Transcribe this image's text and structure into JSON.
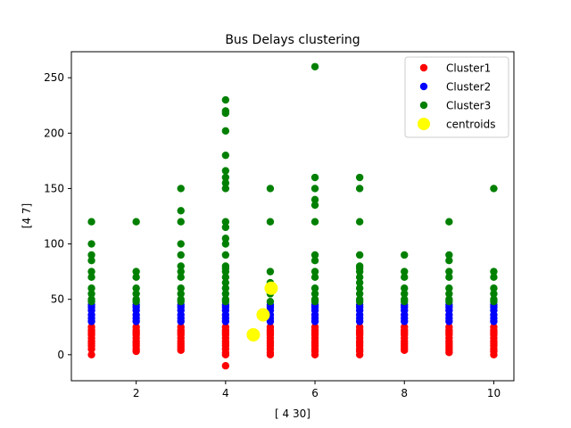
{
  "chart_data": {
    "type": "scatter",
    "title": "Bus Delays clustering",
    "xlabel": "[ 4 30]",
    "ylabel": "[4 7]",
    "xlim": [
      0.55,
      10.45
    ],
    "ylim": [
      -23.5,
      273.5
    ],
    "xticks": [
      2,
      4,
      6,
      8,
      10
    ],
    "yticks": [
      0,
      50,
      100,
      150,
      200,
      250
    ],
    "legend_position": "top-right",
    "grid": false,
    "series": [
      {
        "name": "Cluster1",
        "color": "#ff0000",
        "points": [
          [
            1,
            0
          ],
          [
            1,
            5
          ],
          [
            1,
            8
          ],
          [
            1,
            10
          ],
          [
            1,
            12
          ],
          [
            1,
            15
          ],
          [
            1,
            18
          ],
          [
            1,
            20
          ],
          [
            1,
            22
          ],
          [
            1,
            25
          ],
          [
            2,
            3
          ],
          [
            2,
            5
          ],
          [
            2,
            8
          ],
          [
            2,
            10
          ],
          [
            2,
            12
          ],
          [
            2,
            15
          ],
          [
            2,
            18
          ],
          [
            2,
            20
          ],
          [
            2,
            22
          ],
          [
            2,
            25
          ],
          [
            3,
            4
          ],
          [
            3,
            6
          ],
          [
            3,
            8
          ],
          [
            3,
            10
          ],
          [
            3,
            12
          ],
          [
            3,
            15
          ],
          [
            3,
            18
          ],
          [
            3,
            20
          ],
          [
            3,
            22
          ],
          [
            3,
            25
          ],
          [
            4,
            -10
          ],
          [
            4,
            0
          ],
          [
            4,
            2
          ],
          [
            4,
            5
          ],
          [
            4,
            8
          ],
          [
            4,
            10
          ],
          [
            4,
            12
          ],
          [
            4,
            15
          ],
          [
            4,
            18
          ],
          [
            4,
            20
          ],
          [
            4,
            22
          ],
          [
            4,
            25
          ],
          [
            5,
            0
          ],
          [
            5,
            2
          ],
          [
            5,
            5
          ],
          [
            5,
            8
          ],
          [
            5,
            10
          ],
          [
            5,
            12
          ],
          [
            5,
            15
          ],
          [
            5,
            18
          ],
          [
            5,
            20
          ],
          [
            5,
            22
          ],
          [
            5,
            25
          ],
          [
            6,
            0
          ],
          [
            6,
            3
          ],
          [
            6,
            5
          ],
          [
            6,
            8
          ],
          [
            6,
            10
          ],
          [
            6,
            12
          ],
          [
            6,
            15
          ],
          [
            6,
            18
          ],
          [
            6,
            20
          ],
          [
            6,
            22
          ],
          [
            6,
            25
          ],
          [
            7,
            0
          ],
          [
            7,
            3
          ],
          [
            7,
            5
          ],
          [
            7,
            8
          ],
          [
            7,
            10
          ],
          [
            7,
            12
          ],
          [
            7,
            15
          ],
          [
            7,
            18
          ],
          [
            7,
            20
          ],
          [
            7,
            22
          ],
          [
            7,
            25
          ],
          [
            8,
            4
          ],
          [
            8,
            6
          ],
          [
            8,
            8
          ],
          [
            8,
            10
          ],
          [
            8,
            12
          ],
          [
            8,
            15
          ],
          [
            8,
            18
          ],
          [
            8,
            20
          ],
          [
            8,
            22
          ],
          [
            8,
            25
          ],
          [
            9,
            2
          ],
          [
            9,
            4
          ],
          [
            9,
            6
          ],
          [
            9,
            8
          ],
          [
            9,
            10
          ],
          [
            9,
            12
          ],
          [
            9,
            15
          ],
          [
            9,
            18
          ],
          [
            9,
            20
          ],
          [
            9,
            22
          ],
          [
            9,
            25
          ],
          [
            10,
            0
          ],
          [
            10,
            3
          ],
          [
            10,
            5
          ],
          [
            10,
            8
          ],
          [
            10,
            10
          ],
          [
            10,
            12
          ],
          [
            10,
            15
          ],
          [
            10,
            18
          ],
          [
            10,
            20
          ],
          [
            10,
            22
          ],
          [
            10,
            25
          ]
        ]
      },
      {
        "name": "Cluster2",
        "color": "#0000ff",
        "points": [
          [
            1,
            30
          ],
          [
            1,
            33
          ],
          [
            1,
            36
          ],
          [
            1,
            40
          ],
          [
            1,
            43
          ],
          [
            1,
            45
          ],
          [
            2,
            30
          ],
          [
            2,
            33
          ],
          [
            2,
            36
          ],
          [
            2,
            40
          ],
          [
            2,
            43
          ],
          [
            2,
            45
          ],
          [
            3,
            30
          ],
          [
            3,
            33
          ],
          [
            3,
            36
          ],
          [
            3,
            40
          ],
          [
            3,
            43
          ],
          [
            3,
            45
          ],
          [
            4,
            30
          ],
          [
            4,
            33
          ],
          [
            4,
            36
          ],
          [
            4,
            40
          ],
          [
            4,
            43
          ],
          [
            4,
            45
          ],
          [
            5,
            30
          ],
          [
            5,
            33
          ],
          [
            5,
            36
          ],
          [
            5,
            40
          ],
          [
            5,
            43
          ],
          [
            5,
            45
          ],
          [
            6,
            30
          ],
          [
            6,
            33
          ],
          [
            6,
            36
          ],
          [
            6,
            40
          ],
          [
            6,
            43
          ],
          [
            6,
            45
          ],
          [
            7,
            30
          ],
          [
            7,
            33
          ],
          [
            7,
            36
          ],
          [
            7,
            40
          ],
          [
            7,
            43
          ],
          [
            7,
            45
          ],
          [
            8,
            30
          ],
          [
            8,
            33
          ],
          [
            8,
            36
          ],
          [
            8,
            40
          ],
          [
            8,
            43
          ],
          [
            8,
            45
          ],
          [
            9,
            30
          ],
          [
            9,
            33
          ],
          [
            9,
            36
          ],
          [
            9,
            40
          ],
          [
            9,
            43
          ],
          [
            9,
            45
          ],
          [
            10,
            30
          ],
          [
            10,
            33
          ],
          [
            10,
            36
          ],
          [
            10,
            40
          ],
          [
            10,
            43
          ],
          [
            10,
            45
          ]
        ]
      },
      {
        "name": "Cluster3",
        "color": "#008000",
        "points": [
          [
            1,
            48
          ],
          [
            1,
            50
          ],
          [
            1,
            55
          ],
          [
            1,
            60
          ],
          [
            1,
            70
          ],
          [
            1,
            75
          ],
          [
            1,
            85
          ],
          [
            1,
            90
          ],
          [
            1,
            100
          ],
          [
            1,
            120
          ],
          [
            2,
            48
          ],
          [
            2,
            50
          ],
          [
            2,
            55
          ],
          [
            2,
            60
          ],
          [
            2,
            70
          ],
          [
            2,
            75
          ],
          [
            2,
            120
          ],
          [
            3,
            48
          ],
          [
            3,
            50
          ],
          [
            3,
            55
          ],
          [
            3,
            60
          ],
          [
            3,
            70
          ],
          [
            3,
            75
          ],
          [
            3,
            80
          ],
          [
            3,
            90
          ],
          [
            3,
            100
          ],
          [
            3,
            120
          ],
          [
            3,
            130
          ],
          [
            3,
            150
          ],
          [
            4,
            48
          ],
          [
            4,
            50
          ],
          [
            4,
            55
          ],
          [
            4,
            60
          ],
          [
            4,
            65
          ],
          [
            4,
            70
          ],
          [
            4,
            75
          ],
          [
            4,
            78
          ],
          [
            4,
            80
          ],
          [
            4,
            90
          ],
          [
            4,
            100
          ],
          [
            4,
            105
          ],
          [
            4,
            115
          ],
          [
            4,
            120
          ],
          [
            4,
            150
          ],
          [
            4,
            155
          ],
          [
            4,
            160
          ],
          [
            4,
            166
          ],
          [
            4,
            180
          ],
          [
            4,
            202
          ],
          [
            4,
            218
          ],
          [
            4,
            220
          ],
          [
            4,
            230
          ],
          [
            5,
            48
          ],
          [
            5,
            55
          ],
          [
            5,
            60
          ],
          [
            5,
            65
          ],
          [
            5,
            75
          ],
          [
            5,
            120
          ],
          [
            5,
            150
          ],
          [
            6,
            48
          ],
          [
            6,
            50
          ],
          [
            6,
            55
          ],
          [
            6,
            60
          ],
          [
            6,
            70
          ],
          [
            6,
            75
          ],
          [
            6,
            85
          ],
          [
            6,
            90
          ],
          [
            6,
            120
          ],
          [
            6,
            135
          ],
          [
            6,
            140
          ],
          [
            6,
            150
          ],
          [
            6,
            160
          ],
          [
            6,
            260
          ],
          [
            7,
            48
          ],
          [
            7,
            50
          ],
          [
            7,
            55
          ],
          [
            7,
            60
          ],
          [
            7,
            65
          ],
          [
            7,
            70
          ],
          [
            7,
            75
          ],
          [
            7,
            78
          ],
          [
            7,
            80
          ],
          [
            7,
            90
          ],
          [
            7,
            120
          ],
          [
            7,
            150
          ],
          [
            7,
            160
          ],
          [
            8,
            48
          ],
          [
            8,
            50
          ],
          [
            8,
            55
          ],
          [
            8,
            60
          ],
          [
            8,
            70
          ],
          [
            8,
            75
          ],
          [
            8,
            90
          ],
          [
            9,
            48
          ],
          [
            9,
            50
          ],
          [
            9,
            55
          ],
          [
            9,
            60
          ],
          [
            9,
            70
          ],
          [
            9,
            75
          ],
          [
            9,
            85
          ],
          [
            9,
            90
          ],
          [
            9,
            120
          ],
          [
            10,
            48
          ],
          [
            10,
            50
          ],
          [
            10,
            55
          ],
          [
            10,
            60
          ],
          [
            10,
            70
          ],
          [
            10,
            75
          ],
          [
            10,
            150
          ]
        ]
      },
      {
        "name": "centroids",
        "color": "#ffff00",
        "marker": "large",
        "points": [
          [
            4.62,
            18
          ],
          [
            4.84,
            36
          ],
          [
            5.02,
            60
          ]
        ]
      }
    ]
  }
}
